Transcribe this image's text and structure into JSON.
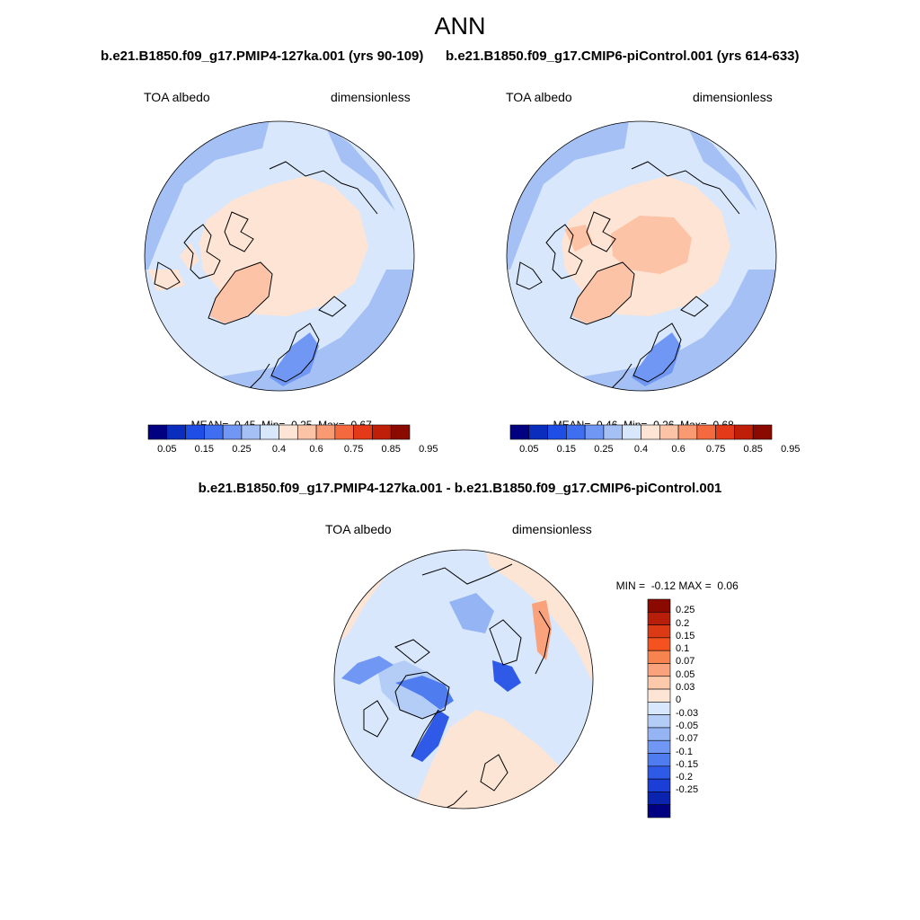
{
  "figure": {
    "title": "ANN"
  },
  "panels": [
    {
      "case_title": "b.e21.B1850.f09_g17.PMIP4-127ka.001 (yrs 90-109)",
      "variable": "TOA albedo",
      "units": "dimensionless",
      "stats": {
        "mean_label": "MEAN=",
        "mean": "0.45",
        "min_label": "Min=",
        "min": "0.25",
        "max_label": "Max=",
        "max": "0.67"
      }
    },
    {
      "case_title": "b.e21.B1850.f09_g17.CMIP6-piControl.001 (yrs 614-633)",
      "variable": "TOA albedo",
      "units": "dimensionless",
      "stats": {
        "mean_label": "MEAN=",
        "mean": "0.46",
        "min_label": "Min=",
        "min": "0.26",
        "max_label": "Max=",
        "max": "0.68"
      }
    },
    {
      "case_title": "b.e21.B1850.f09_g17.PMIP4-127ka.001 - b.e21.B1850.f09_g17.CMIP6-piControl.001",
      "variable": "TOA albedo",
      "units": "dimensionless",
      "stats": {
        "min_label": "MIN =",
        "min": "-0.12",
        "max_label": "MAX =",
        "max": "0.06"
      }
    }
  ],
  "colorbars": {
    "absolute": {
      "colors": [
        "#000080",
        "#0a2dbe",
        "#1f4ee6",
        "#3f6ef0",
        "#6f97f3",
        "#a5c0f5",
        "#d8e7fb",
        "#fde4d4",
        "#fcc3a6",
        "#f99a72",
        "#f46a3e",
        "#e43a1a",
        "#bf1f08",
        "#8b0a00"
      ],
      "tick_labels": [
        "0.05",
        "0.15",
        "0.25",
        "0.4",
        "0.6",
        "0.75",
        "0.85",
        "0.95"
      ]
    },
    "difference": {
      "colors": [
        "#8b0a00",
        "#b71f0a",
        "#dc3a14",
        "#f4531f",
        "#f7844f",
        "#faa27c",
        "#fcc9aa",
        "#fde5d5",
        "#d8e7fb",
        "#b4cdf7",
        "#94b4f4",
        "#6f97f3",
        "#4f7df0",
        "#2f5ae8",
        "#1a3ed6",
        "#0a24b0",
        "#000080"
      ],
      "tick_labels": [
        "0.25",
        "0.2",
        "0.15",
        "0.1",
        "0.07",
        "0.05",
        "0.03",
        "0",
        "-0.03",
        "-0.05",
        "-0.07",
        "-0.1",
        "-0.15",
        "-0.2",
        "-0.25"
      ]
    }
  }
}
